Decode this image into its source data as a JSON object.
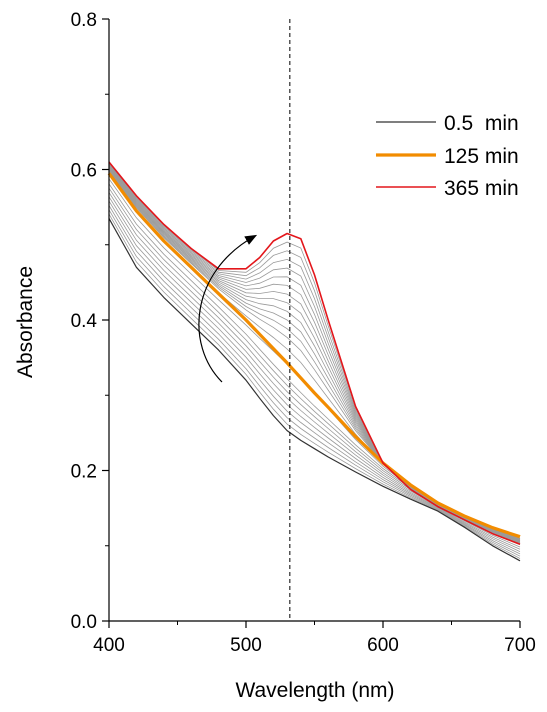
{
  "chart_data": {
    "type": "line",
    "title": "",
    "xlabel": "Wavelength (nm)",
    "ylabel": "Absorbance",
    "xlim": [
      400,
      700
    ],
    "ylim": [
      0.0,
      0.8
    ],
    "x_ticks": [
      400,
      500,
      600,
      700
    ],
    "x_tick_labels": [
      "400",
      "500",
      "600",
      "700"
    ],
    "y_ticks": [
      0.0,
      0.2,
      0.4,
      0.6,
      0.8
    ],
    "y_tick_labels": [
      "0.0",
      "0.2",
      "0.4",
      "0.6",
      "0.8"
    ],
    "grid": false,
    "legend_position": "top-right",
    "reference_line": {
      "x": 532,
      "style": "dashed"
    },
    "annotation": "curved arrow indicating increase of absorbance near 530 nm over time",
    "x": [
      400,
      420,
      440,
      460,
      480,
      500,
      510,
      520,
      530,
      540,
      550,
      560,
      580,
      600,
      620,
      640,
      660,
      680,
      700
    ],
    "series": [
      {
        "name": "0.5  min",
        "color": "#333333",
        "width": 1.2,
        "values": [
          0.535,
          0.47,
          0.43,
          0.395,
          0.36,
          0.32,
          0.296,
          0.273,
          0.253,
          0.24,
          0.229,
          0.218,
          0.198,
          0.179,
          0.162,
          0.146,
          0.124,
          0.1,
          0.08
        ]
      },
      {
        "name": "125 min",
        "color": "#f28c00",
        "width": 3.2,
        "values": [
          0.595,
          0.545,
          0.505,
          0.47,
          0.435,
          0.4,
          0.381,
          0.362,
          0.343,
          0.323,
          0.303,
          0.284,
          0.245,
          0.21,
          0.181,
          0.157,
          0.139,
          0.124,
          0.112
        ]
      },
      {
        "name": "365 min",
        "color": "#e3161b",
        "width": 1.6,
        "values": [
          0.61,
          0.565,
          0.527,
          0.495,
          0.468,
          0.468,
          0.483,
          0.505,
          0.515,
          0.508,
          0.46,
          0.4,
          0.285,
          0.21,
          0.175,
          0.152,
          0.134,
          0.116,
          0.102
        ]
      }
    ]
  }
}
